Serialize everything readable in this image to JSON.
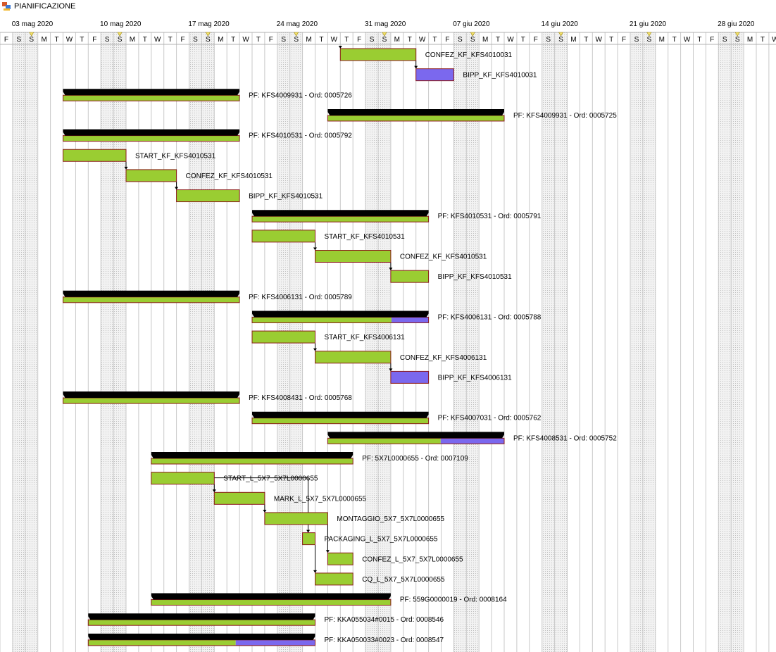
{
  "window": {
    "title": "PIANIFICAZIONE",
    "icon": "app-chart-icon"
  },
  "timeline": {
    "weeks": [
      "03 mag 2020",
      "10 mag 2020",
      "17 mag 2020",
      "24 mag 2020",
      "31 mag 2020",
      "07 giu 2020",
      "14 giu 2020",
      "21 giu 2020",
      "28 giu 2020"
    ],
    "day_letters": [
      "F",
      "S",
      "S",
      "M",
      "T",
      "W",
      "T",
      "F",
      "S",
      "S",
      "M",
      "T",
      "W",
      "T",
      "F",
      "S",
      "S",
      "M",
      "T",
      "W",
      "T",
      "F",
      "S",
      "S",
      "M",
      "T",
      "W",
      "T",
      "F",
      "S",
      "S",
      "M",
      "T",
      "W",
      "T",
      "F",
      "S",
      "S",
      "M",
      "T",
      "W",
      "T",
      "F",
      "S",
      "S",
      "M",
      "T",
      "W",
      "T",
      "F",
      "S",
      "S",
      "M",
      "T",
      "W",
      "T",
      "F",
      "S",
      "S",
      "M",
      "T",
      "W"
    ]
  },
  "colors": {
    "done": "#9acd32",
    "remaining": "#7b68ee",
    "summary": "#000000",
    "border": "#8b1a1a",
    "weekend": "#ebebeb",
    "grid": "#c8c8c8"
  },
  "chart_data": {
    "type": "gantt",
    "rows": [
      {
        "kind": "task",
        "start": 27,
        "end": 33,
        "label": "CONFEZ_KF_KFS4010031",
        "progress": 1
      },
      {
        "kind": "task",
        "start": 33,
        "end": 36,
        "label": "BIPP_KF_KFS4010031",
        "progress": 0
      },
      {
        "kind": "summary",
        "start": 5,
        "end": 19,
        "label": "PF: KFS4009931 - Ord: 0005726",
        "progress": 1
      },
      {
        "kind": "summary",
        "start": 26,
        "end": 40,
        "label": "PF: KFS4009931 - Ord: 0005725",
        "progress": 1
      },
      {
        "kind": "summary",
        "start": 5,
        "end": 19,
        "label": "PF: KFS4010531 - Ord: 0005792",
        "progress": 1
      },
      {
        "kind": "task",
        "start": 5,
        "end": 10,
        "label": "START_KF_KFS4010531",
        "progress": 1
      },
      {
        "kind": "task",
        "start": 10,
        "end": 14,
        "label": "CONFEZ_KF_KFS4010531",
        "progress": 1
      },
      {
        "kind": "task",
        "start": 14,
        "end": 19,
        "label": "BIPP_KF_KFS4010531",
        "progress": 1
      },
      {
        "kind": "summary",
        "start": 20,
        "end": 34,
        "label": "PF: KFS4010531 - Ord: 0005791",
        "progress": 1
      },
      {
        "kind": "task",
        "start": 20,
        "end": 25,
        "label": "START_KF_KFS4010531",
        "progress": 1
      },
      {
        "kind": "task",
        "start": 25,
        "end": 31,
        "label": "CONFEZ_KF_KFS4010531",
        "progress": 1
      },
      {
        "kind": "task",
        "start": 31,
        "end": 34,
        "label": "BIPP_KF_KFS4010531",
        "progress": 1
      },
      {
        "kind": "summary",
        "start": 5,
        "end": 19,
        "label": "PF: KFS4006131 - Ord: 0005789",
        "progress": 1
      },
      {
        "kind": "summary",
        "start": 20,
        "end": 34,
        "label": "PF: KFS4006131 - Ord: 0005788",
        "progress": 0.79
      },
      {
        "kind": "task",
        "start": 20,
        "end": 25,
        "label": "START_KF_KFS4006131",
        "progress": 1
      },
      {
        "kind": "task",
        "start": 25,
        "end": 31,
        "label": "CONFEZ_KF_KFS4006131",
        "progress": 1
      },
      {
        "kind": "task",
        "start": 31,
        "end": 34,
        "label": "BIPP_KF_KFS4006131",
        "progress": 0
      },
      {
        "kind": "summary",
        "start": 5,
        "end": 19,
        "label": "PF: KFS4008431 - Ord: 0005768",
        "progress": 1
      },
      {
        "kind": "summary",
        "start": 20,
        "end": 34,
        "label": "PF: KFS4007031 - Ord: 0005762",
        "progress": 1
      },
      {
        "kind": "summary",
        "start": 26,
        "end": 40,
        "label": "PF: KFS4008531 - Ord: 0005752",
        "progress": 0.64
      },
      {
        "kind": "summary",
        "start": 12,
        "end": 28,
        "label": "PF: 5X7L0000655 - Ord: 0007109",
        "progress": 1
      },
      {
        "kind": "task",
        "start": 12,
        "end": 17,
        "label": "START_L_5X7_5X7L0000655",
        "progress": 1
      },
      {
        "kind": "task",
        "start": 17,
        "end": 21,
        "label": "MARK_L_5X7_5X7L0000655",
        "progress": 1
      },
      {
        "kind": "task",
        "start": 21,
        "end": 26,
        "label": "MONTAGGIO_5X7_5X7L0000655",
        "progress": 1
      },
      {
        "kind": "task",
        "start": 24,
        "end": 25,
        "label": "PACKAGING_L_5X7_5X7L0000655",
        "progress": 1
      },
      {
        "kind": "task",
        "start": 26,
        "end": 28,
        "label": "CONFEZ_L_5X7_5X7L0000655",
        "progress": 1
      },
      {
        "kind": "task",
        "start": 25,
        "end": 28,
        "label": "CQ_L_5X7_5X7L0000655",
        "progress": 1
      },
      {
        "kind": "summary",
        "start": 12,
        "end": 31,
        "label": "PF: 559G0000019 - Ord: 0008164",
        "progress": 1
      },
      {
        "kind": "summary",
        "start": 7,
        "end": 25,
        "label": "PF: KKA055034#0015 - Ord: 0008546",
        "progress": 1
      },
      {
        "kind": "summary",
        "start": 7,
        "end": 25,
        "label": "PF: KKA050033#0023 - Ord: 0008547",
        "progress": 0.65
      }
    ]
  }
}
